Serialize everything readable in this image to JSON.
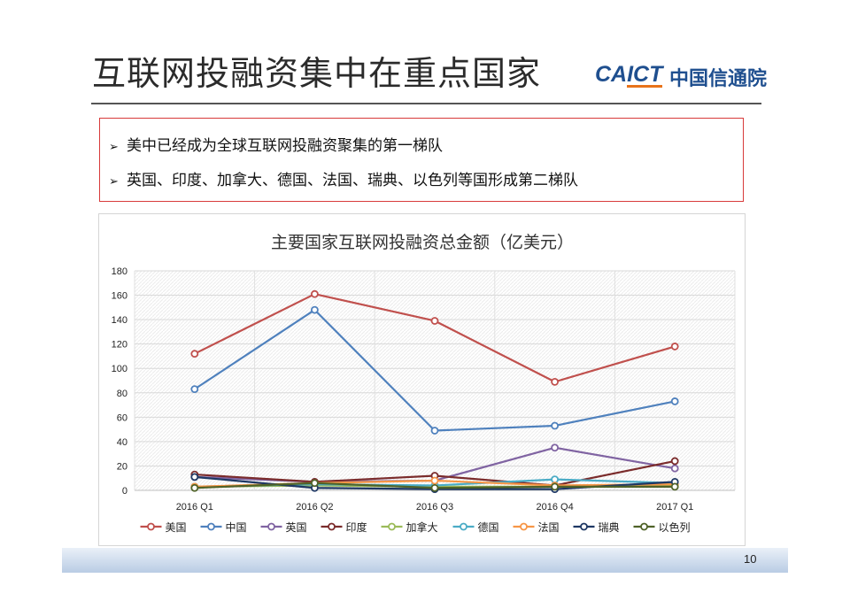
{
  "slide": {
    "title": "互联网投融资集中在重点国家",
    "logo_en": "CAICT",
    "logo_cn": "中国信通院",
    "bullets": [
      "美中已经成为全球互联网投融资聚集的第一梯队",
      "英国、印度、加拿大、德国、法国、瑞典、以色列等国形成第二梯队"
    ],
    "bullet_glyph": "➢",
    "page_number": "10"
  },
  "chart_data": {
    "type": "line",
    "title": "主要国家互联网投融资总金额（亿美元）",
    "categories": [
      "2016 Q1",
      "2016 Q2",
      "2016 Q3",
      "2016 Q4",
      "2017 Q1"
    ],
    "ylim": [
      0,
      180
    ],
    "yticks": [
      0,
      20,
      40,
      60,
      80,
      100,
      120,
      140,
      160,
      180
    ],
    "grid": true,
    "legend_position": "bottom",
    "series": [
      {
        "name": "美国",
        "color": "#c0504d",
        "values": [
          112,
          161,
          139,
          89,
          118
        ]
      },
      {
        "name": "中国",
        "color": "#4f81bd",
        "values": [
          83,
          148,
          49,
          53,
          73
        ]
      },
      {
        "name": "英国",
        "color": "#8064a2",
        "values": [
          11,
          7,
          8,
          35,
          18
        ]
      },
      {
        "name": "印度",
        "color": "#7b2c2c",
        "values": [
          13,
          7,
          12,
          4,
          24
        ]
      },
      {
        "name": "加拿大",
        "color": "#9bbb59",
        "values": [
          3,
          4,
          3,
          3,
          4
        ]
      },
      {
        "name": "德国",
        "color": "#4bacc6",
        "values": [
          3,
          5,
          4,
          9,
          6
        ]
      },
      {
        "name": "法国",
        "color": "#f79646",
        "values": [
          3,
          6,
          8,
          4,
          5
        ]
      },
      {
        "name": "瑞典",
        "color": "#1f3864",
        "values": [
          11,
          2,
          1,
          1,
          7
        ]
      },
      {
        "name": "以色列",
        "color": "#4f6228",
        "values": [
          2,
          6,
          2,
          3,
          3
        ]
      }
    ]
  }
}
